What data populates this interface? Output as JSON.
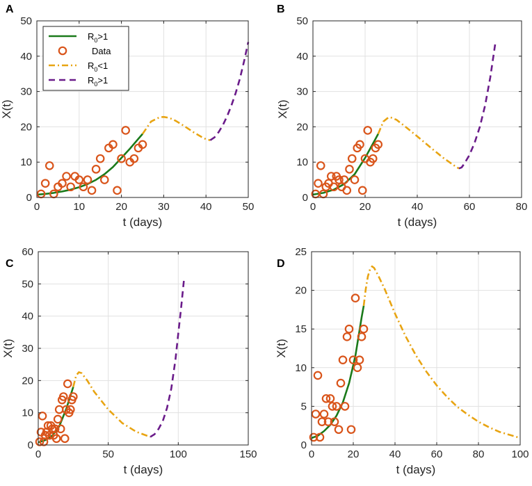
{
  "chart_data": [
    {
      "panel": "A",
      "type": "line",
      "xlabel": "t (days)",
      "ylabel": "X(t)",
      "xlim": [
        0,
        50
      ],
      "ylim": [
        0,
        50
      ],
      "xticks": [
        0,
        10,
        20,
        30,
        40,
        50
      ],
      "yticks": [
        0,
        10,
        20,
        30,
        40,
        50
      ],
      "grid": true,
      "legend": {
        "placement": "top-left",
        "entries": [
          {
            "label": "R",
            "sub": "0",
            "tail": ">1",
            "style": "solid",
            "color": "#1a7a1a"
          },
          {
            "label": "Data",
            "sub": "",
            "tail": "",
            "style": "marker",
            "color": "#d9541a"
          },
          {
            "label": "R",
            "sub": "0",
            "tail": "<1",
            "style": "dashdot",
            "color": "#e8a412"
          },
          {
            "label": "R",
            "sub": "0",
            "tail": ">1",
            "style": "dashed",
            "color": "#6a1b8a"
          }
        ]
      },
      "data": {
        "x": [
          1,
          2,
          3,
          4,
          5,
          6,
          7,
          8,
          9,
          10,
          11,
          12,
          13,
          14,
          15,
          16,
          17,
          18,
          19,
          20,
          21,
          22,
          23,
          24,
          25
        ],
        "y": [
          1,
          4,
          9,
          1,
          3,
          4,
          6,
          3,
          6,
          5,
          3,
          5,
          2,
          8,
          11,
          5,
          14,
          15,
          2,
          11,
          19,
          10,
          11,
          14,
          15
        ]
      },
      "series": [
        {
          "name": "R0>1 (fit)",
          "style": "solid",
          "color": "#1a7a1a",
          "x": [
            0,
            2,
            4,
            6,
            8,
            10,
            12,
            14,
            16,
            18,
            20,
            22,
            24,
            25
          ],
          "y": [
            0.8,
            1.0,
            1.3,
            1.7,
            2.2,
            2.9,
            3.8,
            5.0,
            6.6,
            8.6,
            11.2,
            13.8,
            16.6,
            18.0
          ]
        },
        {
          "name": "R0<1",
          "style": "dashdot",
          "color": "#e8a412",
          "x": [
            25,
            27,
            29,
            30,
            31,
            32,
            33,
            35,
            37,
            39,
            40,
            41
          ],
          "y": [
            18.0,
            21.5,
            22.7,
            22.8,
            22.6,
            22.2,
            21.6,
            20.1,
            18.5,
            17.1,
            16.5,
            16.2
          ]
        },
        {
          "name": "R0>1",
          "style": "dashed",
          "color": "#6a1b8a",
          "x": [
            41,
            42,
            43,
            44,
            45,
            46,
            47,
            48,
            49,
            50
          ],
          "y": [
            16.2,
            17.0,
            18.5,
            20.5,
            23.0,
            26.0,
            29.5,
            33.5,
            38.5,
            44.0
          ]
        }
      ]
    },
    {
      "panel": "B",
      "type": "line",
      "xlabel": "t (days)",
      "ylabel": "X(t)",
      "xlim": [
        0,
        80
      ],
      "ylim": [
        0,
        50
      ],
      "xticks": [
        0,
        20,
        40,
        60,
        80
      ],
      "yticks": [
        0,
        10,
        20,
        30,
        40,
        50
      ],
      "grid": true,
      "data": {
        "x": [
          1,
          2,
          3,
          4,
          5,
          6,
          7,
          8,
          9,
          10,
          11,
          12,
          13,
          14,
          15,
          16,
          17,
          18,
          19,
          20,
          21,
          22,
          23,
          24,
          25
        ],
        "y": [
          1,
          4,
          9,
          1,
          3,
          4,
          6,
          3,
          6,
          5,
          3,
          5,
          2,
          8,
          11,
          5,
          14,
          15,
          2,
          11,
          19,
          10,
          11,
          14,
          15
        ]
      },
      "series": [
        {
          "name": "R0>1 (fit)",
          "style": "solid",
          "color": "#1a7a1a",
          "x": [
            0,
            4,
            8,
            12,
            16,
            20,
            24,
            25
          ],
          "y": [
            0.8,
            1.3,
            2.2,
            3.8,
            6.6,
            11.2,
            16.6,
            18.0
          ]
        },
        {
          "name": "R0<1",
          "style": "dashdot",
          "color": "#e8a412",
          "x": [
            25,
            27,
            29,
            30,
            32,
            35,
            40,
            45,
            50,
            55,
            56
          ],
          "y": [
            18.0,
            21.5,
            22.7,
            22.6,
            22.0,
            20.3,
            17.3,
            14.2,
            11.2,
            8.6,
            8.2
          ]
        },
        {
          "name": "R0>1",
          "style": "dashed",
          "color": "#6a1b8a",
          "x": [
            56,
            57,
            58,
            60,
            62,
            64,
            66,
            68,
            70
          ],
          "y": [
            8.2,
            8.5,
            9.5,
            12.0,
            15.5,
            20.0,
            26.0,
            34.0,
            44.0
          ]
        }
      ]
    },
    {
      "panel": "C",
      "type": "line",
      "xlabel": "t (days)",
      "ylabel": "X(t)",
      "xlim": [
        0,
        150
      ],
      "ylim": [
        0,
        60
      ],
      "xticks": [
        0,
        50,
        100,
        150
      ],
      "yticks": [
        0,
        10,
        20,
        30,
        40,
        50,
        60
      ],
      "grid": true,
      "data": {
        "x": [
          1,
          2,
          3,
          4,
          5,
          6,
          7,
          8,
          9,
          10,
          11,
          12,
          13,
          14,
          15,
          16,
          17,
          18,
          19,
          20,
          21,
          22,
          23,
          24,
          25
        ],
        "y": [
          1,
          4,
          9,
          1,
          3,
          4,
          6,
          3,
          6,
          5,
          3,
          5,
          2,
          8,
          11,
          5,
          14,
          15,
          2,
          11,
          19,
          10,
          11,
          14,
          15
        ]
      },
      "series": [
        {
          "name": "R0>1 (fit)",
          "style": "solid",
          "color": "#1a7a1a",
          "x": [
            0,
            5,
            10,
            15,
            20,
            25
          ],
          "y": [
            0.8,
            1.5,
            2.9,
            5.8,
            11.2,
            18.0
          ]
        },
        {
          "name": "R0<1",
          "style": "dashdot",
          "color": "#e8a412",
          "x": [
            25,
            27,
            29,
            31,
            35,
            40,
            50,
            60,
            70,
            80
          ],
          "y": [
            18.0,
            21.5,
            22.6,
            22.3,
            20.0,
            16.5,
            11.0,
            6.8,
            4.1,
            2.5
          ]
        },
        {
          "name": "R0>1",
          "style": "dashed",
          "color": "#6a1b8a",
          "x": [
            80,
            83,
            86,
            89,
            92,
            95,
            98,
            100,
            102,
            104
          ],
          "y": [
            2.5,
            3.3,
            5.0,
            7.5,
            11.5,
            17.5,
            26.5,
            34.5,
            42.5,
            51.0
          ]
        }
      ]
    },
    {
      "panel": "D",
      "type": "line",
      "xlabel": "t (days)",
      "ylabel": "X(t)",
      "xlim": [
        0,
        100
      ],
      "ylim": [
        0,
        25
      ],
      "xticks": [
        0,
        20,
        40,
        60,
        80,
        100
      ],
      "yticks": [
        0,
        5,
        10,
        15,
        20,
        25
      ],
      "grid": true,
      "data": {
        "x": [
          1,
          2,
          3,
          4,
          5,
          6,
          7,
          8,
          9,
          10,
          11,
          12,
          13,
          14,
          15,
          16,
          17,
          18,
          19,
          20,
          21,
          22,
          23,
          24,
          25
        ],
        "y": [
          1,
          4,
          9,
          1,
          3,
          4,
          6,
          3,
          6,
          5,
          3,
          5,
          2,
          8,
          11,
          5,
          14,
          15,
          2,
          11,
          19,
          10,
          11,
          14,
          15
        ]
      },
      "series": [
        {
          "name": "R0>1 (fit)",
          "style": "solid",
          "color": "#1a7a1a",
          "x": [
            0,
            3,
            6,
            9,
            12,
            15,
            18,
            21,
            24,
            25
          ],
          "y": [
            0.9,
            1.2,
            1.8,
            2.6,
            3.8,
            5.5,
            8.0,
            11.5,
            16.5,
            18.0
          ]
        },
        {
          "name": "R0<1",
          "style": "dashdot",
          "color": "#e8a412",
          "x": [
            25,
            26,
            27,
            28,
            29,
            30,
            32,
            35,
            40,
            45,
            50,
            55,
            60,
            65,
            70,
            75,
            80,
            85,
            90,
            95,
            100
          ],
          "y": [
            18.0,
            20.2,
            21.8,
            22.7,
            23.1,
            22.9,
            21.9,
            20.2,
            17.0,
            14.1,
            11.6,
            9.5,
            7.7,
            6.2,
            4.9,
            3.9,
            3.0,
            2.3,
            1.7,
            1.3,
            0.9
          ]
        }
      ]
    }
  ]
}
